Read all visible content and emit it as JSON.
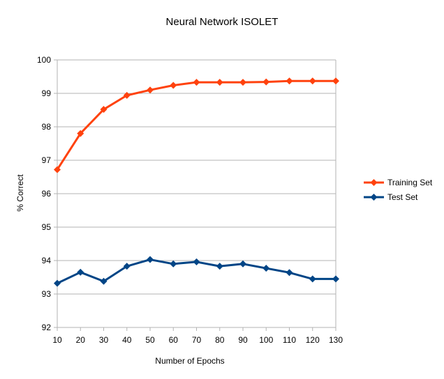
{
  "chart_data": {
    "type": "line",
    "title": "Neural Network ISOLET",
    "xlabel": "Number of Epochs",
    "ylabel": "% Correct",
    "x": [
      10,
      20,
      30,
      40,
      50,
      60,
      70,
      80,
      90,
      100,
      110,
      120,
      130
    ],
    "ylim": [
      92,
      100
    ],
    "yticks": [
      92,
      93,
      94,
      95,
      96,
      97,
      98,
      99,
      100
    ],
    "grid": true,
    "legend_position": "right",
    "series": [
      {
        "name": "Training Set",
        "color": "#ff420e",
        "marker": "diamond",
        "values": [
          96.72,
          97.8,
          98.52,
          98.94,
          99.1,
          99.24,
          99.33,
          99.33,
          99.33,
          99.34,
          99.37,
          99.37,
          99.37
        ]
      },
      {
        "name": "Test Set",
        "color": "#004586",
        "marker": "diamond",
        "values": [
          93.32,
          93.65,
          93.38,
          93.83,
          94.03,
          93.9,
          93.96,
          93.83,
          93.9,
          93.77,
          93.64,
          93.45,
          93.45
        ]
      }
    ]
  }
}
